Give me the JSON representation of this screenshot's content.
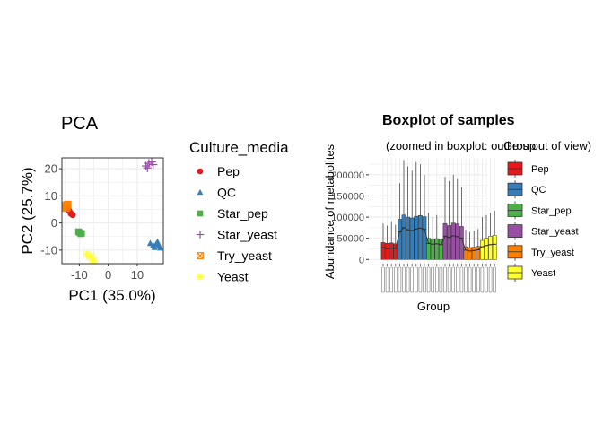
{
  "colors": {
    "Pep": "#E41A1C",
    "QC": "#377EB8",
    "Star_pep": "#4DAF4A",
    "Star_yeast": "#984EA3",
    "Try_yeast": "#FF7F00",
    "Yeast": "#FFFF33",
    "panel_grid": "#EBEBEB",
    "axis_text": "#4D4D4D",
    "border": "#333333"
  },
  "chart_data": [
    {
      "type": "scatter",
      "title": "PCA",
      "xlabel": "PC1 (35.0%)",
      "ylabel": "PC2 (25.7%)",
      "xlim": [
        -16,
        19
      ],
      "ylim": [
        -15,
        24
      ],
      "x_ticks": [
        -10,
        0,
        10
      ],
      "x_tick_labels": [
        "-10",
        "0",
        "10"
      ],
      "y_ticks": [
        -10,
        0,
        10,
        20
      ],
      "y_tick_labels": [
        "-10",
        "0",
        "10",
        "20"
      ],
      "grid": true,
      "legend": {
        "title": "Culture_media",
        "position": "right",
        "entries": [
          {
            "name": "Pep",
            "shape": "circle"
          },
          {
            "name": "QC",
            "shape": "triangle"
          },
          {
            "name": "Star_pep",
            "shape": "square"
          },
          {
            "name": "Star_yeast",
            "shape": "plus"
          },
          {
            "name": "Try_yeast",
            "shape": "square-x"
          },
          {
            "name": "Yeast",
            "shape": "asterisk"
          }
        ]
      },
      "series": [
        {
          "name": "Pep",
          "points": [
            [
              -13.5,
              4.5
            ],
            [
              -12.9,
              3.5
            ],
            [
              -12.3,
              3.0
            ],
            [
              -13.8,
              5.0
            ]
          ]
        },
        {
          "name": "QC",
          "points": [
            [
              14.5,
              -7.5
            ],
            [
              15.5,
              -8.2
            ],
            [
              16.5,
              -7.8
            ],
            [
              17.5,
              -8.5
            ],
            [
              16.0,
              -9.0
            ],
            [
              18.0,
              -9.2
            ],
            [
              17.0,
              -7.0
            ]
          ]
        },
        {
          "name": "Star_pep",
          "points": [
            [
              -10.0,
              -3.5
            ],
            [
              -9.5,
              -4.0
            ],
            [
              -9.2,
              -3.8
            ],
            [
              -10.3,
              -3.2
            ]
          ]
        },
        {
          "name": "Star_yeast",
          "points": [
            [
              13.0,
              21.0
            ],
            [
              14.0,
              22.0
            ],
            [
              15.5,
              21.5
            ],
            [
              13.5,
              20.3
            ],
            [
              15.0,
              22.5
            ]
          ]
        },
        {
          "name": "Try_yeast",
          "points": [
            [
              -14.8,
              6.5
            ],
            [
              -14.3,
              6.0
            ],
            [
              -14.6,
              5.5
            ],
            [
              -14.0,
              6.8
            ]
          ]
        },
        {
          "name": "Yeast",
          "points": [
            [
              -7.5,
              -11.5
            ],
            [
              -6.5,
              -12.5
            ],
            [
              -5.5,
              -13.5
            ],
            [
              -6.0,
              -12.0
            ],
            [
              -5.0,
              -14.0
            ]
          ]
        }
      ]
    },
    {
      "type": "box",
      "title": "Boxplot of samples",
      "subtitle": "(zoomed in boxplot: outliers out of view)",
      "xlabel": "Group",
      "ylabel": "Abundance of metabolites",
      "ylim": [
        -10000,
        240000
      ],
      "y_ticks": [
        0,
        50000,
        100000,
        150000,
        200000
      ],
      "y_tick_labels": [
        "0",
        "50000",
        "100000",
        "150000",
        "200000"
      ],
      "grid": true,
      "legend": {
        "title": "Group",
        "position": "right",
        "entries": [
          "Pep",
          "QC",
          "Star_pep",
          "Star_yeast",
          "Try_yeast",
          "Yeast"
        ]
      },
      "groups": [
        {
          "name": "Pep",
          "samples": [
            {
              "q1": 0,
              "median": 28000,
              "q3": 40000,
              "whisker_high": 85000
            },
            {
              "q1": 0,
              "median": 25000,
              "q3": 38000,
              "whisker_high": 80000
            },
            {
              "q1": 0,
              "median": 27000,
              "q3": 39000,
              "whisker_high": 90000
            },
            {
              "q1": 0,
              "median": 26000,
              "q3": 37000,
              "whisker_high": 82000
            }
          ]
        },
        {
          "name": "QC",
          "samples": [
            {
              "q1": 0,
              "median": 65000,
              "q3": 95000,
              "whisker_high": 180000
            },
            {
              "q1": 0,
              "median": 75000,
              "q3": 105000,
              "whisker_high": 235000
            },
            {
              "q1": 0,
              "median": 70000,
              "q3": 100000,
              "whisker_high": 220000
            },
            {
              "q1": 0,
              "median": 68000,
              "q3": 98000,
              "whisker_high": 210000
            },
            {
              "q1": 0,
              "median": 72000,
              "q3": 102000,
              "whisker_high": 230000
            },
            {
              "q1": 0,
              "median": 74000,
              "q3": 104000,
              "whisker_high": 225000
            },
            {
              "q1": 0,
              "median": 71000,
              "q3": 101000,
              "whisker_high": 200000
            }
          ]
        },
        {
          "name": "Star_pep",
          "samples": [
            {
              "q1": 0,
              "median": 38000,
              "q3": 50000,
              "whisker_high": 110000
            },
            {
              "q1": 0,
              "median": 36000,
              "q3": 48000,
              "whisker_high": 100000
            },
            {
              "q1": 0,
              "median": 37000,
              "q3": 49000,
              "whisker_high": 105000
            },
            {
              "q1": 0,
              "median": 35000,
              "q3": 47000,
              "whisker_high": 95000
            }
          ]
        },
        {
          "name": "Star_yeast",
          "samples": [
            {
              "q1": 0,
              "median": 55000,
              "q3": 85000,
              "whisker_high": 195000
            },
            {
              "q1": 0,
              "median": 52000,
              "q3": 80000,
              "whisker_high": 185000
            },
            {
              "q1": 0,
              "median": 56000,
              "q3": 86000,
              "whisker_high": 200000
            },
            {
              "q1": 0,
              "median": 54000,
              "q3": 84000,
              "whisker_high": 190000
            },
            {
              "q1": 0,
              "median": 50000,
              "q3": 78000,
              "whisker_high": 170000
            }
          ]
        },
        {
          "name": "Try_yeast",
          "samples": [
            {
              "q1": 0,
              "median": 22000,
              "q3": 30000,
              "whisker_high": 70000
            },
            {
              "q1": 0,
              "median": 20000,
              "q3": 28000,
              "whisker_high": 65000
            },
            {
              "q1": 0,
              "median": 21000,
              "q3": 29000,
              "whisker_high": 68000
            },
            {
              "q1": 0,
              "median": 23000,
              "q3": 31000,
              "whisker_high": 72000
            }
          ]
        },
        {
          "name": "Yeast",
          "samples": [
            {
              "q1": 0,
              "median": 30000,
              "q3": 45000,
              "whisker_high": 100000
            },
            {
              "q1": 0,
              "median": 33000,
              "q3": 50000,
              "whisker_high": 105000
            },
            {
              "q1": 0,
              "median": 35000,
              "q3": 55000,
              "whisker_high": 110000
            },
            {
              "q1": 0,
              "median": 36000,
              "q3": 57000,
              "whisker_high": 115000
            }
          ]
        }
      ],
      "trend_line": true
    }
  ]
}
